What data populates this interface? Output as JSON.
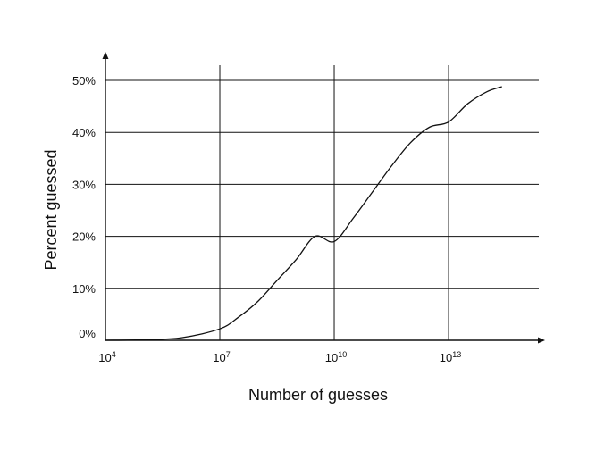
{
  "chart_data": {
    "type": "line",
    "xlabel": "Number of guesses",
    "ylabel": "Percent guessed",
    "x_scale": "log10",
    "x_ticks": [
      {
        "base": "10",
        "exp": "4",
        "value": 10000
      },
      {
        "base": "10",
        "exp": "7",
        "value": 10000000
      },
      {
        "base": "10",
        "exp": "10",
        "value": 10000000000
      },
      {
        "base": "10",
        "exp": "13",
        "value": 10000000000000
      }
    ],
    "y_ticks": [
      "0%",
      "10%",
      "20%",
      "30%",
      "40%",
      "50%"
    ],
    "y_tick_values": [
      0,
      10,
      20,
      30,
      40,
      50
    ],
    "ylim": [
      0,
      50
    ],
    "grid": true,
    "series": [
      {
        "points": [
          {
            "x": 10000,
            "y": 0
          },
          {
            "x": 100000,
            "y": 0.1
          },
          {
            "x": 1000000,
            "y": 0.5
          },
          {
            "x": 10000000,
            "y": 2.2
          },
          {
            "x": 31600000,
            "y": 4.5
          },
          {
            "x": 100000000,
            "y": 7.5
          },
          {
            "x": 316000000,
            "y": 11.5
          },
          {
            "x": 1000000000,
            "y": 15.5
          },
          {
            "x": 3160000000,
            "y": 20
          },
          {
            "x": 10000000000,
            "y": 19
          },
          {
            "x": 31600000000,
            "y": 23.5
          },
          {
            "x": 100000000000,
            "y": 28.5
          },
          {
            "x": 316000000000,
            "y": 33.5
          },
          {
            "x": 1000000000000,
            "y": 38
          },
          {
            "x": 3160000000000,
            "y": 41
          },
          {
            "x": 10000000000000,
            "y": 42
          },
          {
            "x": 31600000000000,
            "y": 45.5
          },
          {
            "x": 100000000000000,
            "y": 47.8
          },
          {
            "x": 251000000000000,
            "y": 48.8
          }
        ]
      }
    ]
  }
}
